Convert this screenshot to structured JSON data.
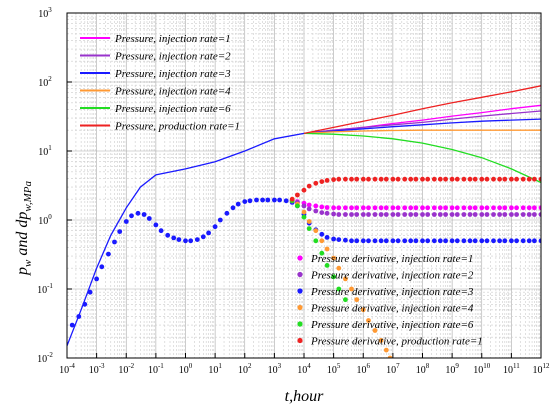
{
  "chart_data": {
    "type": "line",
    "x_scale": "log",
    "y_scale": "log",
    "xlim": [
      0.0001,
      1000000000000
    ],
    "ylim": [
      0.01,
      1000
    ],
    "grid": true,
    "x_tick_labels": [
      {
        "base": "10",
        "exp": "-4"
      },
      {
        "base": "10",
        "exp": "-3"
      },
      {
        "base": "10",
        "exp": "-2"
      },
      {
        "base": "10",
        "exp": "-1"
      },
      {
        "base": "10",
        "exp": "0"
      },
      {
        "base": "10",
        "exp": "1"
      },
      {
        "base": "10",
        "exp": "2"
      },
      {
        "base": "10",
        "exp": "3"
      },
      {
        "base": "10",
        "exp": "4"
      },
      {
        "base": "10",
        "exp": "5"
      },
      {
        "base": "10",
        "exp": "6"
      },
      {
        "base": "10",
        "exp": "7"
      },
      {
        "base": "10",
        "exp": "8"
      },
      {
        "base": "10",
        "exp": "9"
      },
      {
        "base": "10",
        "exp": "10"
      },
      {
        "base": "10",
        "exp": "11"
      },
      {
        "base": "10",
        "exp": "12"
      }
    ],
    "y_tick_labels": [
      {
        "base": "10",
        "exp": "-2"
      },
      {
        "base": "10",
        "exp": "-1"
      },
      {
        "base": "10",
        "exp": "0"
      },
      {
        "base": "10",
        "exp": "1"
      },
      {
        "base": "10",
        "exp": "2"
      },
      {
        "base": "10",
        "exp": "3"
      }
    ],
    "xlabel": {
      "main": "t",
      "rest": ",hour"
    },
    "ylabel": {
      "p": "p",
      "p_sub": "w",
      "mid": " and dp",
      "dp_sub": "w,MPa"
    },
    "legend_top": {
      "placement": "top-left",
      "entries": [
        {
          "label": "Pressure, injection rate=1",
          "color": "#ff00ff"
        },
        {
          "label": "Pressure, injection rate=2",
          "color": "#9933cc"
        },
        {
          "label": "Pressure, injection rate=3",
          "color": "#1a1aff"
        },
        {
          "label": "Pressure, injection rate=4",
          "color": "#ff9933"
        },
        {
          "label": "Pressure, injection rate=6",
          "color": "#22dd22"
        },
        {
          "label": "Pressure, production rate=1",
          "color": "#ee2222"
        }
      ]
    },
    "legend_bottom": {
      "placement": "bottom-right",
      "entries": [
        {
          "label": "Pressure derivative, injection rate=1",
          "color": "#ff00ff"
        },
        {
          "label": "Pressure derivative, injection rate=2",
          "color": "#9933cc"
        },
        {
          "label": "Pressure derivative, injection rate=3",
          "color": "#1a1aff"
        },
        {
          "label": "Pressure derivative, injection rate=4",
          "color": "#ff9933"
        },
        {
          "label": "Pressure derivative, injection rate=6",
          "color": "#22dd22"
        },
        {
          "label": "Pressure derivative, production rate=1",
          "color": "#ee2222"
        }
      ]
    },
    "series": [
      {
        "kind": "pressure",
        "color": "#1a1aff",
        "x": [
          0.0001,
          0.0003,
          0.001,
          0.003,
          0.01,
          0.03,
          0.1,
          1,
          10,
          100,
          1000,
          10000
        ],
        "y": [
          0.015,
          0.05,
          0.2,
          0.6,
          1.5,
          3,
          4.5,
          5.5,
          7,
          10,
          15,
          18
        ]
      },
      {
        "kind": "pressure",
        "color": "#ff00ff",
        "x": [
          10000,
          100000,
          1000000,
          10000000,
          100000000,
          1000000000,
          10000000000,
          100000000000,
          1000000000000
        ],
        "y": [
          18,
          20,
          22,
          25,
          28,
          32,
          36,
          41,
          46
        ]
      },
      {
        "kind": "pressure",
        "color": "#9933cc",
        "x": [
          10000,
          100000,
          1000000,
          10000000,
          100000000,
          1000000000,
          10000000000,
          100000000000,
          1000000000000
        ],
        "y": [
          18,
          20,
          22,
          24,
          26,
          29,
          32,
          35,
          38
        ]
      },
      {
        "kind": "pressure",
        "color": "#1a1aff",
        "x": [
          10000,
          100000,
          1000000,
          10000000,
          100000000,
          1000000000,
          10000000000,
          100000000000,
          1000000000000
        ],
        "y": [
          18,
          19.5,
          21,
          22.5,
          24,
          25.5,
          27,
          28,
          29
        ]
      },
      {
        "kind": "pressure",
        "color": "#ff9933",
        "x": [
          10000,
          100000,
          1000000,
          10000000,
          100000000,
          1000000000,
          10000000000,
          100000000000,
          1000000000000
        ],
        "y": [
          18,
          19,
          19.5,
          19.8,
          20,
          20,
          20,
          20,
          20
        ]
      },
      {
        "kind": "pressure",
        "color": "#22dd22",
        "x": [
          10000,
          100000,
          1000000,
          10000000,
          100000000,
          1000000000,
          10000000000,
          100000000000,
          1000000000000
        ],
        "y": [
          18,
          17.5,
          16.5,
          15,
          13,
          10.5,
          8,
          5.5,
          3.5
        ]
      },
      {
        "kind": "pressure",
        "color": "#ee2222",
        "x": [
          10000,
          100000,
          1000000,
          10000000,
          100000000,
          1000000000,
          10000000000,
          100000000000,
          1000000000000
        ],
        "y": [
          18,
          22,
          27,
          33,
          41,
          50,
          60,
          72,
          88
        ]
      },
      {
        "kind": "derivative",
        "color": "#1a1aff",
        "x": [
          0.00015,
          0.00025,
          0.0004,
          0.0006,
          0.001,
          0.0015,
          0.0025,
          0.004,
          0.006,
          0.01,
          0.015,
          0.025,
          0.04,
          0.06,
          0.1,
          0.15,
          0.25,
          0.4,
          0.6,
          1,
          1.5,
          2.5,
          4,
          6,
          10,
          15,
          25,
          40,
          60,
          100,
          150,
          250,
          400,
          600,
          1000,
          1500,
          2500,
          4000,
          6000,
          10000,
          15000,
          25000,
          40000,
          60000,
          100000,
          150000,
          250000,
          400000,
          600000,
          1000000,
          1500000,
          2500000,
          4000000,
          6000000,
          10000000,
          15000000,
          25000000,
          40000000,
          60000000,
          100000000,
          150000000,
          250000000,
          400000000,
          600000000,
          1000000000,
          1500000000,
          2500000000,
          4000000000,
          6000000000,
          10000000000,
          15000000000,
          25000000000,
          40000000000,
          60000000000,
          100000000000,
          150000000000,
          250000000000,
          400000000000,
          600000000000,
          1000000000000
        ],
        "y": [
          0.03,
          0.04,
          0.06,
          0.09,
          0.14,
          0.21,
          0.32,
          0.48,
          0.68,
          0.95,
          1.15,
          1.25,
          1.2,
          1.05,
          0.85,
          0.7,
          0.6,
          0.55,
          0.52,
          0.5,
          0.5,
          0.52,
          0.57,
          0.65,
          0.8,
          1,
          1.25,
          1.5,
          1.7,
          1.85,
          1.9,
          1.95,
          1.95,
          1.95,
          1.95,
          1.95,
          1.9,
          1.8,
          1.6,
          1.2,
          0.9,
          0.72,
          0.62,
          0.56,
          0.53,
          0.52,
          0.51,
          0.5,
          0.5,
          0.5,
          0.5,
          0.5,
          0.5,
          0.5,
          0.5,
          0.5,
          0.5,
          0.5,
          0.5,
          0.5,
          0.5,
          0.5,
          0.5,
          0.5,
          0.5,
          0.5,
          0.5,
          0.5,
          0.5,
          0.5,
          0.5,
          0.5,
          0.5,
          0.5,
          0.5,
          0.5,
          0.5,
          0.5,
          0.5,
          0.5
        ]
      },
      {
        "kind": "derivative",
        "color": "#ff00ff",
        "x": [
          4000,
          6000,
          10000,
          15000,
          25000,
          40000,
          60000,
          100000,
          150000,
          250000,
          400000,
          600000,
          1000000,
          1500000,
          2500000,
          4000000,
          6000000,
          10000000,
          15000000,
          25000000,
          40000000,
          60000000,
          100000000,
          150000000,
          250000000,
          400000000,
          600000000,
          1000000000,
          1500000000,
          2500000000,
          4000000000,
          6000000000,
          10000000000,
          15000000000,
          25000000000,
          40000000000,
          60000000000,
          100000000000,
          150000000000,
          250000000000,
          400000000000,
          600000000000,
          1000000000000
        ],
        "y": [
          1.9,
          1.85,
          1.75,
          1.65,
          1.6,
          1.55,
          1.52,
          1.5,
          1.5,
          1.5,
          1.5,
          1.5,
          1.5,
          1.5,
          1.5,
          1.5,
          1.5,
          1.5,
          1.5,
          1.5,
          1.5,
          1.5,
          1.5,
          1.5,
          1.5,
          1.5,
          1.5,
          1.5,
          1.5,
          1.5,
          1.5,
          1.5,
          1.5,
          1.5,
          1.5,
          1.5,
          1.5,
          1.5,
          1.5,
          1.5,
          1.5,
          1.5,
          1.5
        ]
      },
      {
        "kind": "derivative",
        "color": "#9933cc",
        "x": [
          4000,
          6000,
          10000,
          15000,
          25000,
          40000,
          60000,
          100000,
          150000,
          250000,
          400000,
          600000,
          1000000,
          1500000,
          2500000,
          4000000,
          6000000,
          10000000,
          15000000,
          25000000,
          40000000,
          60000000,
          100000000,
          150000000,
          250000000,
          400000000,
          600000000,
          1000000000,
          1500000000,
          2500000000,
          4000000000,
          6000000000,
          10000000000,
          15000000000,
          25000000000,
          40000000000,
          60000000000,
          100000000000,
          150000000000,
          250000000000,
          400000000000,
          600000000000,
          1000000000000
        ],
        "y": [
          1.9,
          1.8,
          1.6,
          1.45,
          1.35,
          1.28,
          1.25,
          1.22,
          1.2,
          1.2,
          1.2,
          1.2,
          1.2,
          1.2,
          1.2,
          1.2,
          1.2,
          1.2,
          1.2,
          1.2,
          1.2,
          1.2,
          1.2,
          1.2,
          1.2,
          1.2,
          1.2,
          1.2,
          1.2,
          1.2,
          1.2,
          1.2,
          1.2,
          1.2,
          1.2,
          1.2,
          1.2,
          1.2,
          1.2,
          1.2,
          1.2,
          1.2,
          1.2
        ]
      },
      {
        "kind": "derivative",
        "color": "#ff9933",
        "x": [
          4000,
          6000,
          10000,
          15000,
          25000,
          40000,
          60000,
          100000,
          150000,
          250000,
          400000,
          600000,
          1000000,
          1500000,
          2500000,
          4000000,
          6000000,
          8000000
        ],
        "y": [
          1.9,
          1.7,
          1.3,
          0.95,
          0.7,
          0.5,
          0.38,
          0.28,
          0.2,
          0.14,
          0.1,
          0.07,
          0.05,
          0.035,
          0.025,
          0.018,
          0.013,
          0.01
        ]
      },
      {
        "kind": "derivative",
        "color": "#22dd22",
        "x": [
          4000,
          6000,
          10000,
          15000,
          25000,
          40000,
          60000,
          100000,
          150000,
          250000
        ],
        "y": [
          1.9,
          1.6,
          1.1,
          0.75,
          0.5,
          0.33,
          0.22,
          0.15,
          0.1,
          0.07
        ]
      },
      {
        "kind": "derivative",
        "color": "#ee2222",
        "x": [
          4000,
          6000,
          10000,
          15000,
          25000,
          40000,
          60000,
          100000,
          150000,
          250000,
          400000,
          600000,
          1000000,
          1500000,
          2500000,
          4000000,
          6000000,
          10000000,
          15000000,
          25000000,
          40000000,
          60000000,
          100000000,
          150000000,
          250000000,
          400000000,
          600000000,
          1000000000,
          1500000000,
          2500000000,
          4000000000,
          6000000000,
          10000000000,
          15000000000,
          25000000000,
          40000000000,
          60000000000,
          100000000000,
          150000000000,
          250000000000,
          400000000000,
          600000000000,
          1000000000000
        ],
        "y": [
          2,
          2.3,
          2.7,
          3.1,
          3.4,
          3.6,
          3.75,
          3.85,
          3.9,
          3.9,
          3.9,
          3.9,
          3.9,
          3.9,
          3.9,
          3.9,
          3.9,
          3.9,
          3.9,
          3.9,
          3.9,
          3.9,
          3.9,
          3.9,
          3.9,
          3.9,
          3.9,
          3.9,
          3.9,
          3.9,
          3.9,
          3.9,
          3.9,
          3.9,
          3.9,
          3.9,
          3.9,
          3.9,
          3.9,
          3.9,
          3.9,
          3.9,
          3.9
        ]
      }
    ]
  }
}
